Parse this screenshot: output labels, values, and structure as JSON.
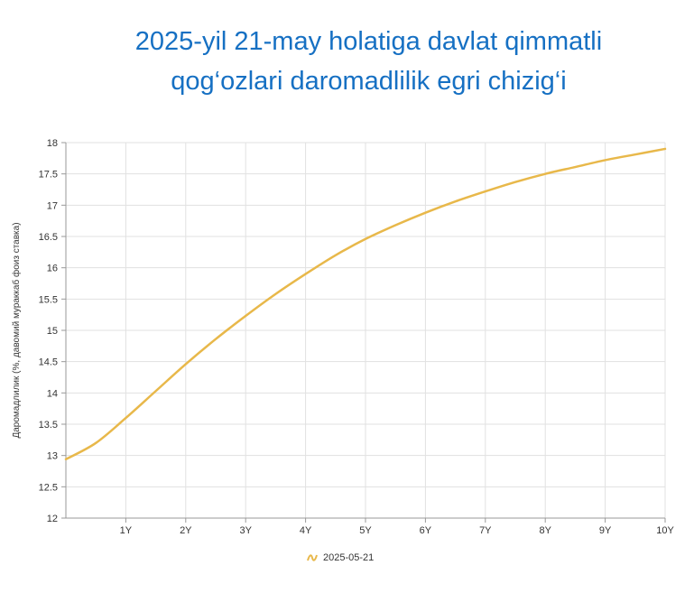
{
  "title_lines": [
    "2025-yil 21-may holatiga davlat qimmatli",
    "qog‘ozlari daromadlilik egri chizig‘i"
  ],
  "colors": {
    "title": "#1670c3",
    "series": "#e8b84a",
    "grid": "#e1e1e1",
    "axis": "#999999"
  },
  "chart_data": {
    "type": "line",
    "title": "2025-yil 21-may holatiga davlat qimmatli qog‘ozlari daromadlilik egri chizig‘i",
    "xlabel": "",
    "ylabel": "Даромадлилик (%, давомий мураккаб фоиз ставка)",
    "x_ticks": [
      "1Y",
      "2Y",
      "3Y",
      "4Y",
      "5Y",
      "6Y",
      "7Y",
      "8Y",
      "9Y",
      "10Y"
    ],
    "y_ticks": [
      "12",
      "12.5",
      "13",
      "13.5",
      "14",
      "14.5",
      "15",
      "15.5",
      "16",
      "16.5",
      "17",
      "17.5",
      "18"
    ],
    "xlim": [
      0,
      10
    ],
    "ylim": [
      12,
      18
    ],
    "grid": true,
    "legend_position": "bottom-center",
    "series": [
      {
        "name": "2025-05-21",
        "x": [
          0,
          0.5,
          1,
          1.5,
          2,
          2.5,
          3,
          3.5,
          4,
          4.5,
          5,
          5.5,
          6,
          6.5,
          7,
          7.5,
          8,
          8.5,
          9,
          9.5,
          10
        ],
        "y": [
          12.94,
          13.2,
          13.6,
          14.03,
          14.46,
          14.86,
          15.23,
          15.58,
          15.9,
          16.2,
          16.46,
          16.68,
          16.88,
          17.06,
          17.22,
          17.37,
          17.5,
          17.61,
          17.72,
          17.81,
          17.9
        ]
      }
    ]
  }
}
